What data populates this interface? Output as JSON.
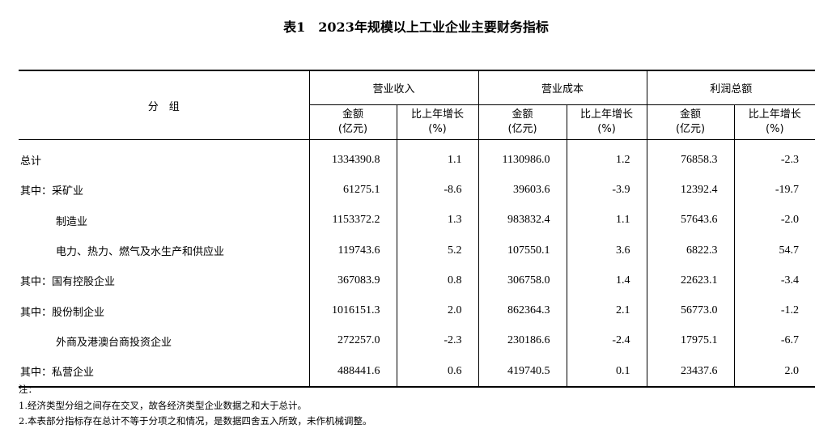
{
  "title": "表1　2023年规模以上工业企业主要财务指标",
  "header": {
    "group": "分　组",
    "sections": [
      "营业收入",
      "营业成本",
      "利润总额"
    ],
    "amount": "金额",
    "amount_unit": "(亿元)",
    "growth": "比上年增长",
    "growth_unit": "(%)"
  },
  "rows": [
    {
      "label": "总计",
      "values": [
        "1334390.8",
        "1.1",
        "1130986.0",
        "1.2",
        "76858.3",
        "-2.3"
      ]
    },
    {
      "label": "其中：采矿业",
      "values": [
        "61275.1",
        "-8.6",
        "39603.6",
        "-3.9",
        "12392.4",
        "-19.7"
      ]
    },
    {
      "label": "制造业",
      "values": [
        "1153372.2",
        "1.3",
        "983832.4",
        "1.1",
        "57643.6",
        "-2.0"
      ]
    },
    {
      "label": "电力、热力、燃气及水生产和供应业",
      "values": [
        "119743.6",
        "5.2",
        "107550.1",
        "3.6",
        "6822.3",
        "54.7"
      ]
    },
    {
      "label": "其中：国有控股企业",
      "values": [
        "367083.9",
        "0.8",
        "306758.0",
        "1.4",
        "22623.1",
        "-3.4"
      ]
    },
    {
      "label": "其中：股份制企业",
      "values": [
        "1016151.3",
        "2.0",
        "862364.3",
        "2.1",
        "56773.0",
        "-1.2"
      ]
    },
    {
      "label": "外商及港澳台商投资企业",
      "values": [
        "272257.0",
        "-2.3",
        "230186.6",
        "-2.4",
        "17975.1",
        "-6.7"
      ]
    },
    {
      "label": "其中：私营企业",
      "values": [
        "488441.6",
        "0.6",
        "419740.5",
        "0.1",
        "23437.6",
        "2.0"
      ]
    }
  ],
  "notes": [
    "注：",
    "1.经济类型分组之间存在交叉，故各经济类型企业数据之和大于总计。",
    "2.本表部分指标存在总计不等于分项之和情况，是数据四舍五入所致，未作机械调整。"
  ]
}
